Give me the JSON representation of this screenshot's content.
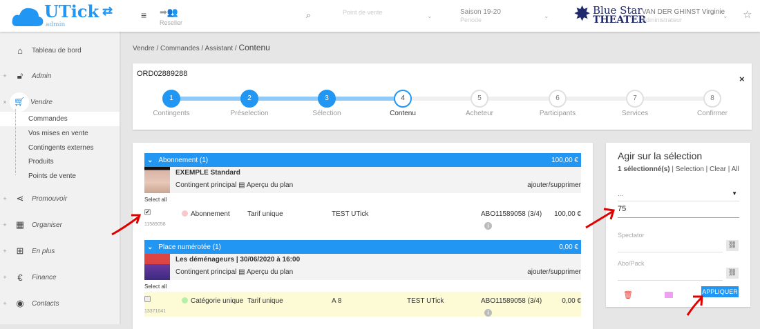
{
  "header": {
    "logo_text": "UTick",
    "logo_sub": "admin",
    "menu_icon": "hamburger-icon",
    "reseller_label": "Reseller",
    "search_icon": "search-icon",
    "point_de_vente_placeholder": "Point de vente",
    "season_value": "Saison 19-20",
    "season_label": "Periode",
    "brand_logo_line1": "Blue Star",
    "brand_logo_line2": "THEATER",
    "user_name": "VAN DER GHINST Virginie",
    "user_role": "Administrateur",
    "favorite_icon": "star-icon"
  },
  "sidebar": {
    "items": [
      {
        "label": "Tableau de bord",
        "icon": "home-icon",
        "toggle": ""
      },
      {
        "label": "Admin",
        "icon": "unlock-icon",
        "toggle": "+"
      },
      {
        "label": "Vendre",
        "icon": "cart-icon",
        "toggle": "×"
      },
      {
        "label": "Promouvoir",
        "icon": "share-icon",
        "toggle": "+"
      },
      {
        "label": "Organiser",
        "icon": "calendar-icon",
        "toggle": "+"
      },
      {
        "label": "En plus",
        "icon": "plus-square-icon",
        "toggle": "+"
      },
      {
        "label": "Finance",
        "icon": "euro-icon",
        "toggle": "+"
      },
      {
        "label": "Contacts",
        "icon": "user-circle-icon",
        "toggle": "+"
      }
    ],
    "sub_items": [
      "Commandes",
      "Vos mises en vente",
      "Contingents externes",
      "Produits",
      "Points de vente"
    ],
    "active_sub": "Commandes"
  },
  "breadcrumb": {
    "items": [
      "Vendre",
      "Commandes",
      "Assistant"
    ],
    "current": "Contenu",
    "sep": "/"
  },
  "order": {
    "id": "ORD02889288",
    "close": "×",
    "steps": [
      {
        "n": "1",
        "label": "Contingents",
        "state": "done"
      },
      {
        "n": "2",
        "label": "Préselection",
        "state": "done"
      },
      {
        "n": "3",
        "label": "Sélection",
        "state": "done"
      },
      {
        "n": "4",
        "label": "Contenu",
        "state": "current"
      },
      {
        "n": "5",
        "label": "Acheteur",
        "state": "todo"
      },
      {
        "n": "6",
        "label": "Participants",
        "state": "todo"
      },
      {
        "n": "7",
        "label": "Services",
        "state": "todo"
      },
      {
        "n": "8",
        "label": "Confirmer",
        "state": "todo"
      }
    ]
  },
  "groups": [
    {
      "title": "Abonnement (1)",
      "total": "100,00 €",
      "event": "EXEMPLE Standard",
      "contingent": "Contingent principal",
      "plan": "Aperçu du plan",
      "action": "ajouter/supprimer",
      "select_all": "Select all",
      "row": {
        "checked": true,
        "id": "11589058",
        "category": "Abonnement",
        "dot": "#f8c8cc",
        "tarif": "Tarif unique",
        "seat": "",
        "name": "TEST UTick",
        "abo": "ABO11589058 (3/4)",
        "price": "100,00 €"
      }
    },
    {
      "title": "Place numérotée (1)",
      "total": "0,00 €",
      "event": "Les déménageurs | 30/06/2020 à 16:00",
      "contingent": "Contingent principal",
      "plan": "Aperçu du plan",
      "action": "ajouter/supprimer",
      "select_all": "Select all",
      "row": {
        "checked": false,
        "id": "13371041",
        "category": "Catégorie unique",
        "dot": "#b6f0a8",
        "tarif": "Tarif unique",
        "seat": "A 8",
        "name": "TEST UTick",
        "abo": "ABO11589058 (3/4)",
        "price": "0,00 €"
      }
    }
  ],
  "panel": {
    "title": "Agir sur la sélection",
    "count": "1 sélectionné(s)",
    "links": [
      "Selection",
      "Clear",
      "All"
    ],
    "select_value": "...",
    "input_value": "75",
    "spectator_label": "Spectator",
    "abo_label": "Abo/Pack",
    "apply": "APPLIQUER"
  },
  "colors": {
    "accent": "#2196f3",
    "annotation": "#e00000"
  }
}
